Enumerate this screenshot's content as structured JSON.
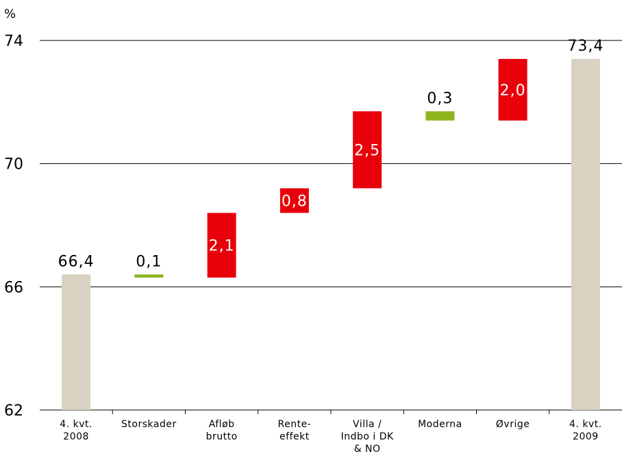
{
  "chart_data": {
    "type": "bar",
    "subtype": "waterfall",
    "unit_label": "%",
    "ylim": [
      62,
      74
    ],
    "yticks": [
      62,
      66,
      70,
      74
    ],
    "ytick_labels": [
      "62",
      "66",
      "70",
      "74"
    ],
    "grid": true,
    "categories": [
      [
        "4. kvt.",
        "2008"
      ],
      [
        "Storskader"
      ],
      [
        "Afløb",
        "brutto"
      ],
      [
        "Rente-",
        "effekt"
      ],
      [
        "Villa /",
        "Indbo i DK",
        "& NO"
      ],
      [
        "Moderna"
      ],
      [
        "Øvrige"
      ],
      [
        "4. kvt.",
        "2009"
      ]
    ],
    "bars": [
      {
        "kind": "total",
        "start": 62.0,
        "end": 66.4,
        "label": "66,4",
        "label_inside": false
      },
      {
        "kind": "change",
        "start": 66.3,
        "end": 66.4,
        "label": "0,1",
        "label_inside": false
      },
      {
        "kind": "change",
        "start": 66.3,
        "end": 68.4,
        "label": "2,1",
        "label_inside": true
      },
      {
        "kind": "change",
        "start": 68.4,
        "end": 69.2,
        "label": "0,8",
        "label_inside": true
      },
      {
        "kind": "change",
        "start": 69.2,
        "end": 71.7,
        "label": "2,5",
        "label_inside": true
      },
      {
        "kind": "change",
        "start": 71.4,
        "end": 71.7,
        "label": "0,3",
        "label_inside": false
      },
      {
        "kind": "change",
        "start": 71.4,
        "end": 73.4,
        "label": "2,0",
        "label_inside": true
      },
      {
        "kind": "total",
        "start": 62.0,
        "end": 73.4,
        "label": "73,4",
        "label_inside": false
      }
    ],
    "bar_colors": [
      "#d9d2c2",
      "#8db51e",
      "#e8000b",
      "#e8000b",
      "#e8000b",
      "#8db51e",
      "#e8000b",
      "#d9d2c2"
    ],
    "colors": {
      "total": "#d9d2c2",
      "decrease": "#8db51e",
      "increase": "#e8000b",
      "grid": "#000000",
      "label_outside": "#000000",
      "label_inside": "#ffffff"
    }
  }
}
